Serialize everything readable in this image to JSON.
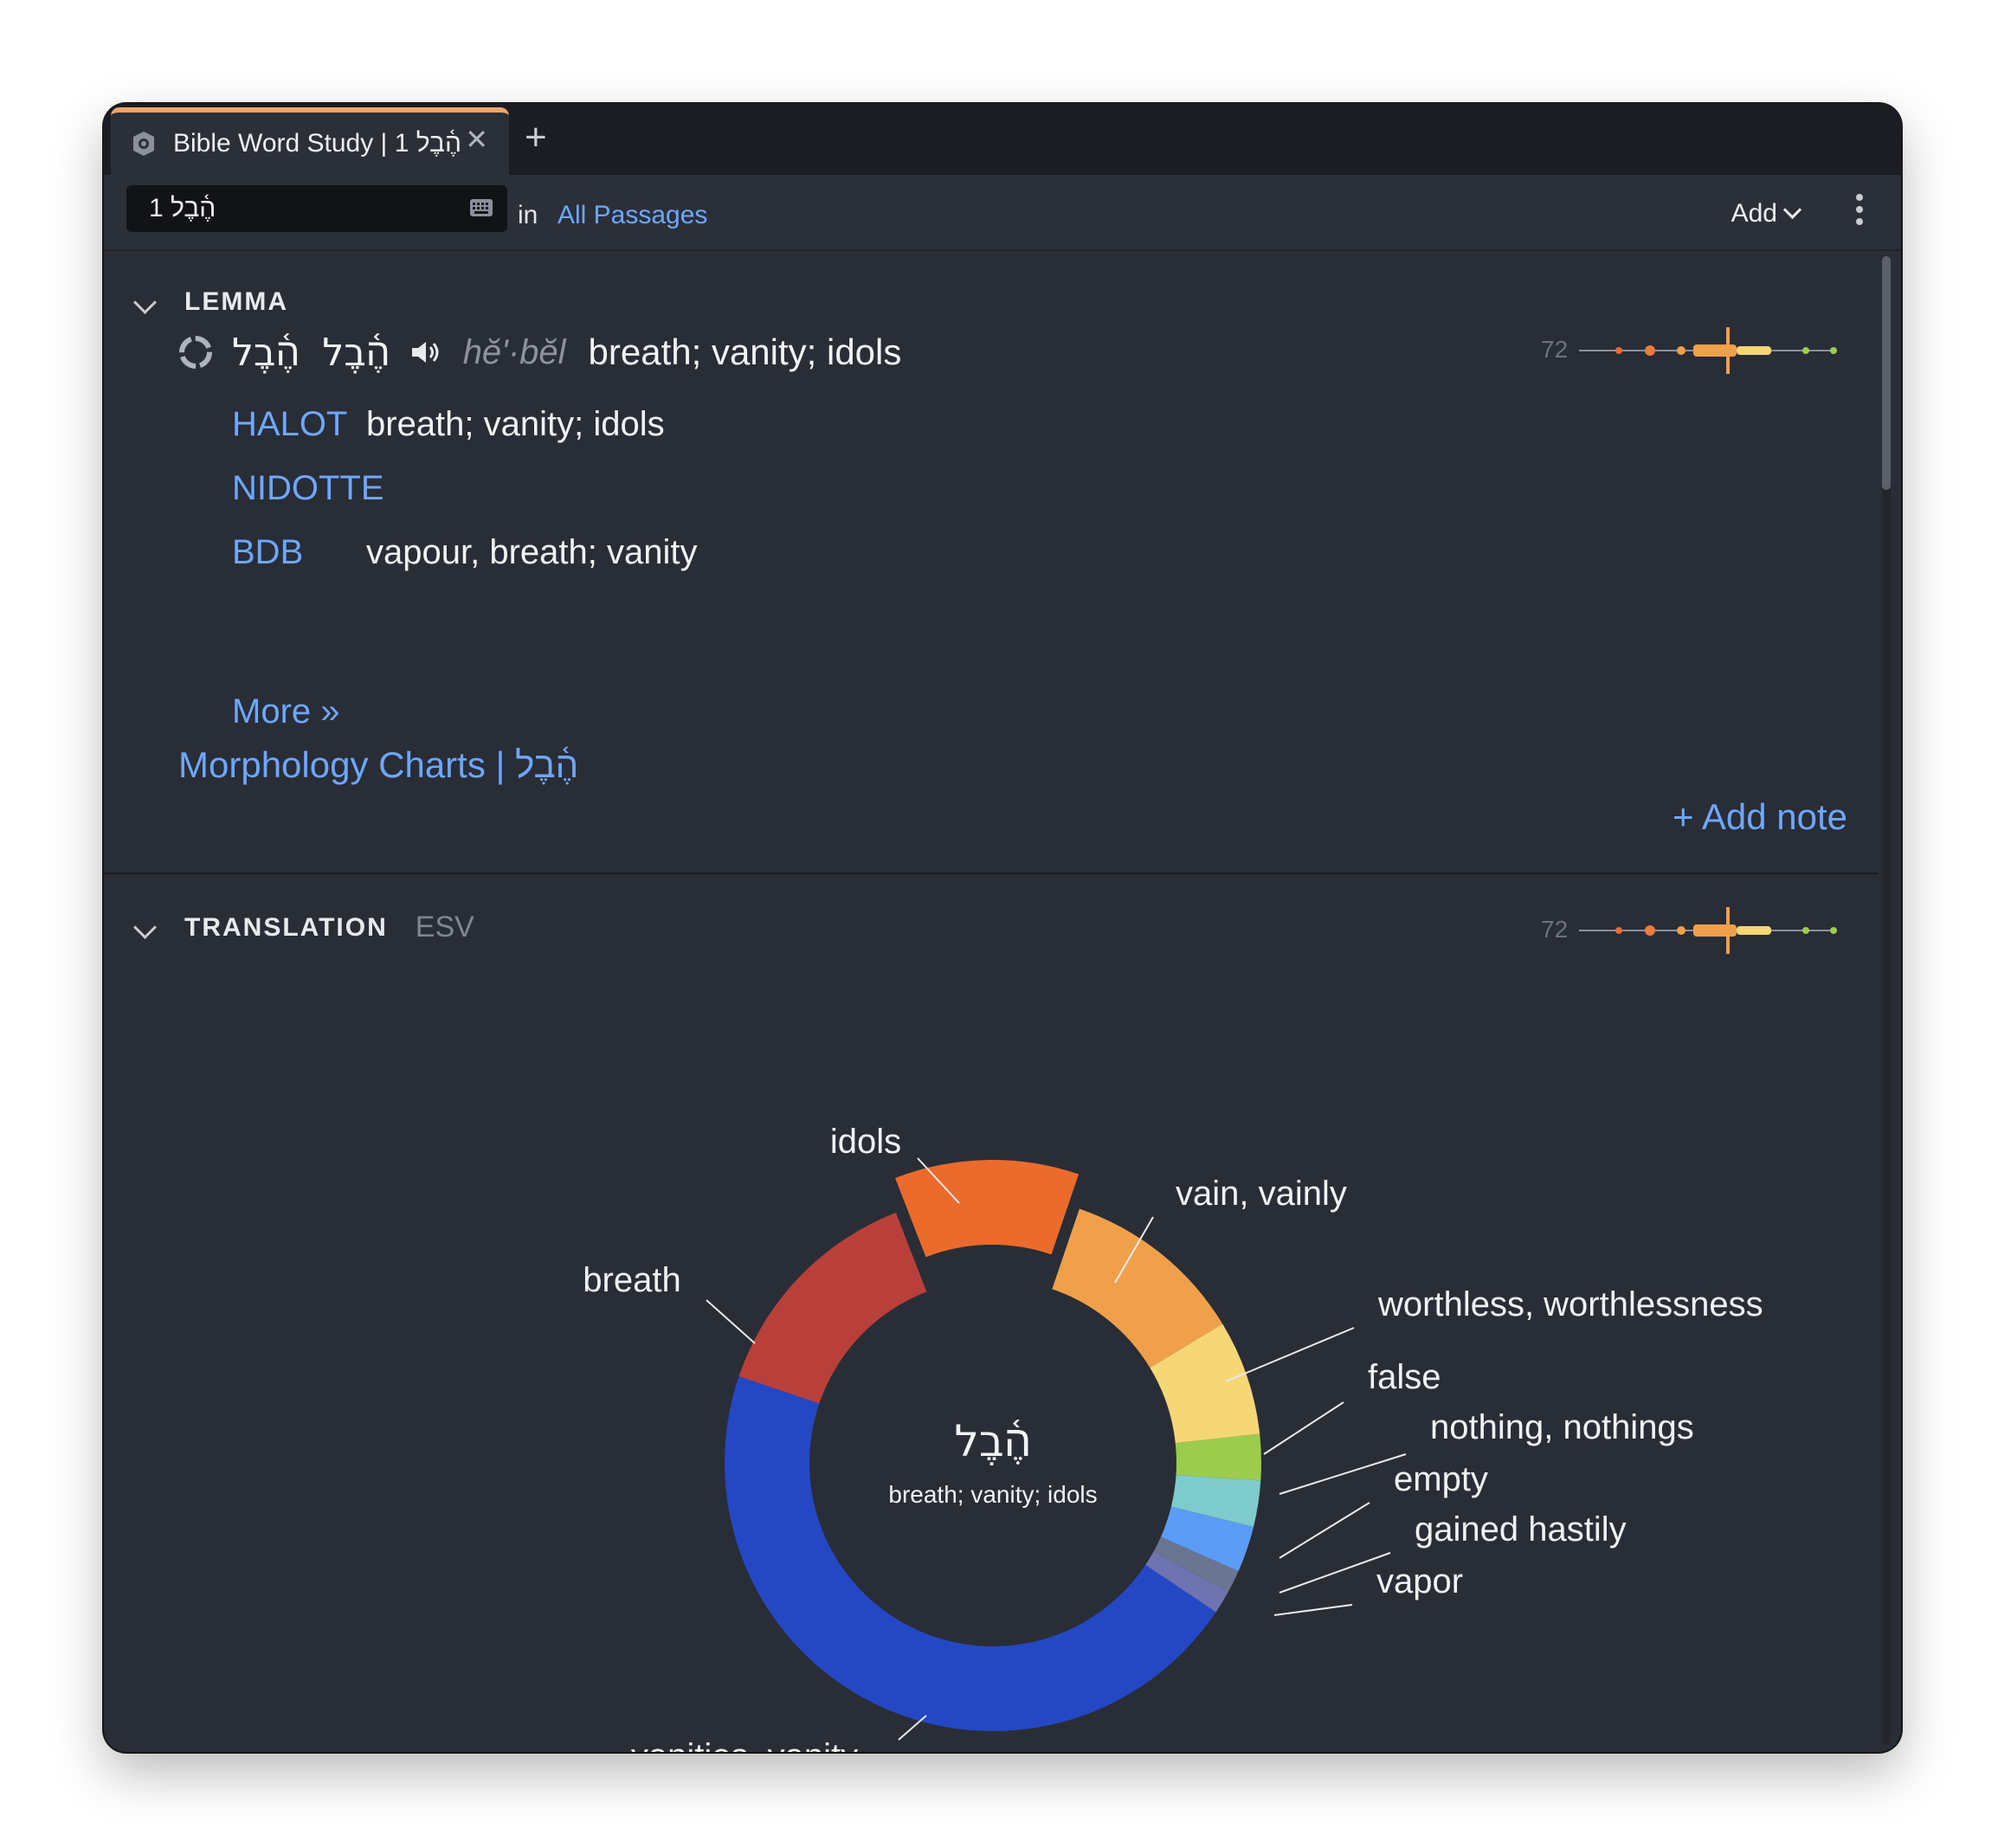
{
  "tab": {
    "title": "Bible Word Study | 1 הֶ֫בֶל",
    "close": "✕",
    "new": "+"
  },
  "toolbar": {
    "search_value": "1 הֶ֫בֶל",
    "in_label": "in",
    "scope": "All Passages",
    "add_label": "Add"
  },
  "lemma": {
    "heading": "LEMMA",
    "hebrew_1": "הֶ֫בֶל",
    "hebrew_2": "הֶ֫בֶל",
    "transliteration": "hĕʹ·bĕl",
    "gloss": "breath; vanity; idols",
    "lexicons": [
      {
        "source": "HALOT",
        "text": "breath; vanity; idols"
      },
      {
        "source": "NIDOTTE",
        "text": ""
      },
      {
        "source": "BDB",
        "text": "vapour, breath; vanity"
      }
    ],
    "more": "More »",
    "morphology_link": "Morphology Charts  |  הֶ֫בֶל",
    "add_note": "+ Add note",
    "count": "72"
  },
  "translation": {
    "heading": "TRANSLATION",
    "version": "ESV",
    "count": "72",
    "center_word": "הֶ֫בֶל",
    "center_gloss": "breath; vanity; idols"
  },
  "colors": {
    "accent_link": "#6ea7ff",
    "tab_accent": "#f0a56a",
    "window_bg": "#292d36"
  },
  "chart_data": {
    "type": "pie",
    "style": "donut",
    "exploded": "idols",
    "series": [
      {
        "label": "idols",
        "value": 8,
        "color": "#ea6b2c"
      },
      {
        "label": "vain, vainly",
        "value": 8,
        "color": "#f0a04b"
      },
      {
        "label": "worthless, worthlessness",
        "value": 5,
        "color": "#f6d776"
      },
      {
        "label": "false",
        "value": 2,
        "color": "#9ccc4e"
      },
      {
        "label": "nothing, nothings",
        "value": 2,
        "color": "#7ecbcb"
      },
      {
        "label": "empty",
        "value": 2,
        "color": "#5b9cf6"
      },
      {
        "label": "gained hastily",
        "value": 1,
        "color": "#6a7592"
      },
      {
        "label": "vapor",
        "value": 1,
        "color": "#6f73b0"
      },
      {
        "label": "vanities, vanity",
        "value": 33,
        "color": "#2448c4"
      },
      {
        "label": "breath",
        "value": 10,
        "color": "#b9403a"
      }
    ]
  }
}
